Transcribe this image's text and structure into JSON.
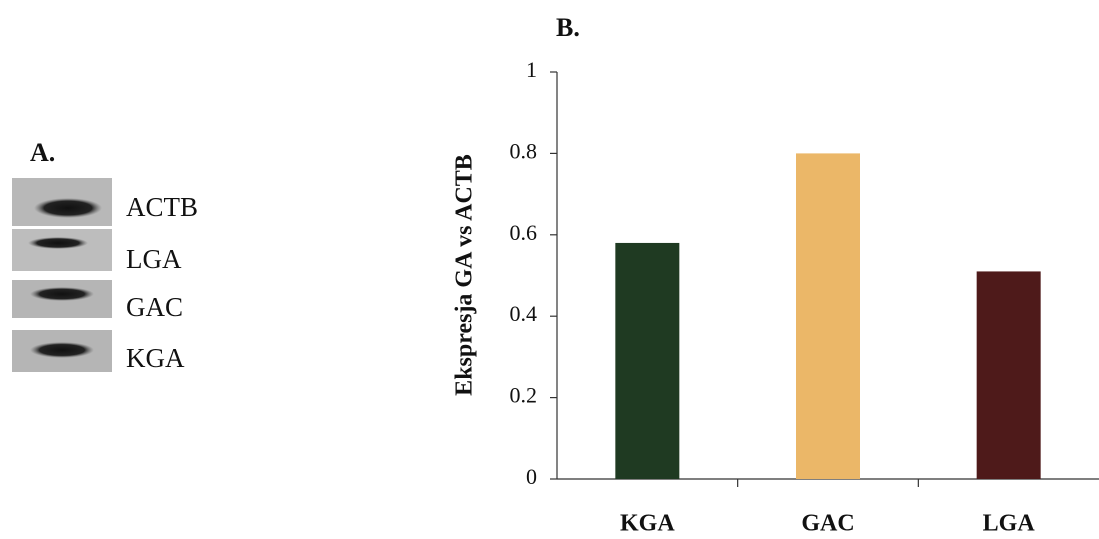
{
  "panel_a": {
    "label": "A.",
    "bands": [
      "ACTB",
      "LGA",
      "GAC",
      "KGA"
    ]
  },
  "chart_data": {
    "type": "bar",
    "title": "B.",
    "y_label": "Ekspresja GA vs ACTB",
    "categories": [
      "KGA",
      "GAC",
      "LGA"
    ],
    "values": [
      0.58,
      0.8,
      0.51
    ],
    "colors": [
      "#1f3a22",
      "#ebb768",
      "#4e1a1a"
    ],
    "ylim": [
      0,
      1
    ],
    "yticks": [
      0,
      0.2,
      0.4,
      0.6,
      0.8,
      1
    ]
  }
}
